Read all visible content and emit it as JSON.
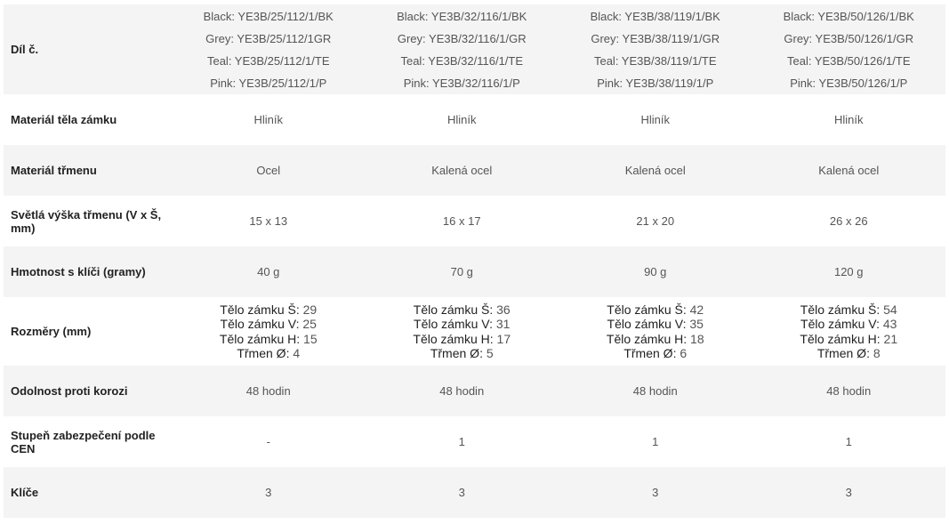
{
  "rows": [
    {
      "label": "Díl č.",
      "cells": [
        [
          "Black: YE3B/25/112/1/BK",
          "Grey: YE3B/25/112/1GR",
          "Teal: YE3B/25/112/1/TE",
          "Pink: YE3B/25/112/1/P"
        ],
        [
          "Black: YE3B/32/116/1/BK",
          "Grey: YE3B/32/116/1/GR",
          "Teal: YE3B/32/116/1/TE",
          "Pink: YE3B/32/116/1/P"
        ],
        [
          "Black: YE3B/38/119/1/BK",
          "Grey: YE3B/38/119/1/GR",
          "Teal: YE3B/38/119/1/TE",
          "Pink: YE3B/38/119/1/P"
        ],
        [
          "Black: YE3B/50/126/1/BK",
          "Grey: YE3B/50/126/1/GR",
          "Teal: YE3B/50/126/1/TE",
          "Pink: YE3B/50/126/1/P"
        ]
      ]
    },
    {
      "label": "Materiál těla zámku",
      "cells": [
        "Hliník",
        "Hliník",
        "Hliník",
        "Hliník"
      ]
    },
    {
      "label": "Materiál třmenu",
      "cells": [
        "Ocel",
        "Kalená ocel",
        "Kalená ocel",
        "Kalená ocel"
      ]
    },
    {
      "label": "Světlá výška třmenu (V x Š, mm)",
      "cells": [
        "15 x 13",
        "16 x 17",
        "21 x 20",
        "26 x 26"
      ]
    },
    {
      "label": "Hmotnost s klíči (gramy)",
      "cells": [
        "40 g",
        "70 g",
        "90 g",
        "120 g"
      ]
    },
    {
      "label": "Rozměry (mm)",
      "keys": [
        "Tělo zámku Š:",
        "Tělo zámku V:",
        "Tělo zámku H:",
        "Třmen Ø:"
      ],
      "cells": [
        [
          "29",
          "25",
          "15",
          "4"
        ],
        [
          "36",
          "31",
          "17",
          "5"
        ],
        [
          "42",
          "35",
          "18",
          "6"
        ],
        [
          "54",
          "43",
          "21",
          "8"
        ]
      ]
    },
    {
      "label": "Odolnost proti korozi",
      "cells": [
        "48 hodin",
        "48 hodin",
        "48 hodin",
        "48 hodin"
      ]
    },
    {
      "label": "Stupeň zabezpečení podle CEN",
      "cells": [
        "-",
        "1",
        "1",
        "1"
      ]
    },
    {
      "label": "Klíče",
      "cells": [
        "3",
        "3",
        "3",
        "3"
      ]
    }
  ],
  "colors": {
    "stripe": "#f4f4f4",
    "label_text": "#222222",
    "value_text": "#555555"
  }
}
